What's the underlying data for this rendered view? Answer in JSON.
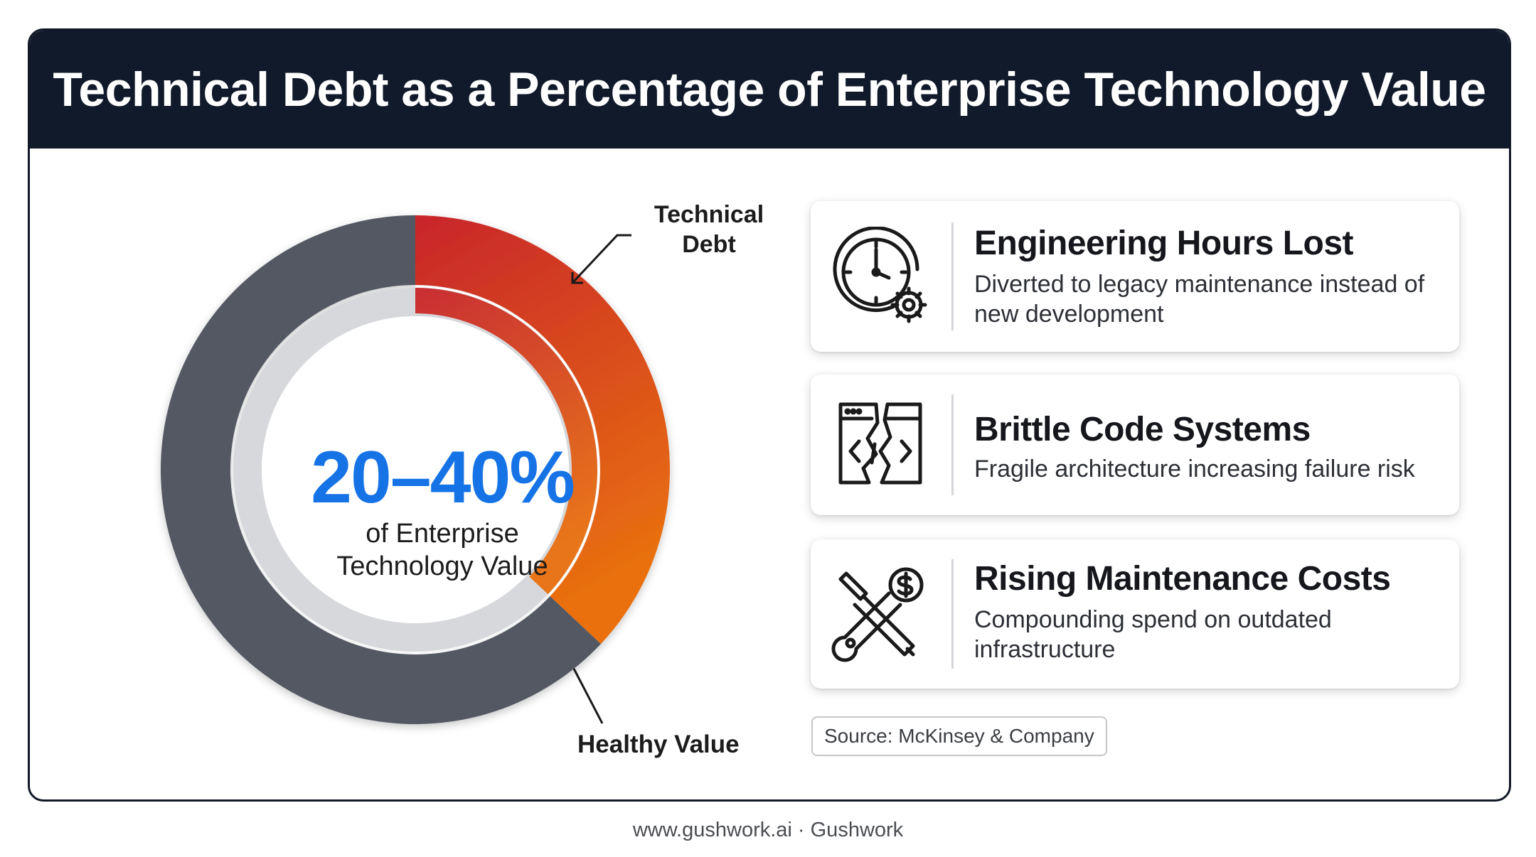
{
  "header": {
    "title": "Technical Debt as a Percentage of Enterprise Technology Value"
  },
  "chart_data": {
    "type": "pie",
    "style": "donut",
    "categories": [
      "Technical Debt",
      "Healthy Value"
    ],
    "values": [
      37,
      63
    ],
    "center_value": "20–40%",
    "center_label": [
      "of Enterprise",
      "Technology Value"
    ],
    "labels": {
      "debt": [
        "Technical",
        "Debt"
      ],
      "healthy": "Healthy Value"
    },
    "colors": {
      "debt_start": "#c8252b",
      "debt_end": "#e9700f",
      "healthy": "#525964",
      "inner_ring": "#d6d8db"
    }
  },
  "cards": [
    {
      "icon": "clock-gear-icon",
      "title": "Engineering Hours Lost",
      "desc": "Diverted to legacy maintenance instead of new development"
    },
    {
      "icon": "broken-code-icon",
      "title": "Brittle Code Systems",
      "desc": "Fragile architecture increasing failure risk"
    },
    {
      "icon": "wrench-screwdriver-dollar-icon",
      "title": "Rising Maintenance Costs",
      "desc": "Compounding spend on outdated infrastructure"
    }
  ],
  "source": "Source: McKinsey & Company",
  "footer": "www.gushwork.ai · Gushwork"
}
